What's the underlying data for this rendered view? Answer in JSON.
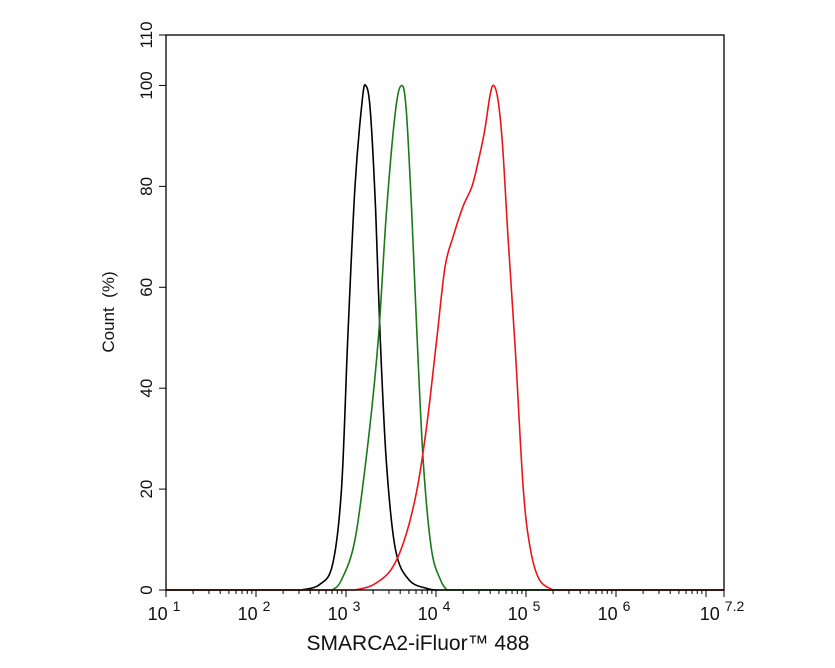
{
  "chart_data": {
    "type": "line",
    "title": "",
    "xlabel": "SMARCA2-iFluor™ 488",
    "ylabel": "Count  (%)",
    "x_scale": "log",
    "xlim": [
      10,
      15848932
    ],
    "ylim": [
      0,
      110
    ],
    "x_ticks": [
      {
        "base": "10",
        "exp": "1",
        "value": 10
      },
      {
        "base": "10",
        "exp": "2",
        "value": 100
      },
      {
        "base": "10",
        "exp": "3",
        "value": 1000
      },
      {
        "base": "10",
        "exp": "4",
        "value": 10000
      },
      {
        "base": "10",
        "exp": "5",
        "value": 100000
      },
      {
        "base": "10",
        "exp": "6",
        "value": 1000000
      },
      {
        "base": "10",
        "exp": "7.2",
        "value": 15848932
      }
    ],
    "y_ticks": [
      0,
      20,
      40,
      60,
      80,
      100,
      110
    ],
    "grid": false,
    "legend": "none",
    "series": [
      {
        "color": "#000000",
        "x": [
          316,
          501,
          708,
          891,
          1047,
          1259,
          1514,
          1660,
          1862,
          2138,
          2399,
          2818,
          3548,
          5012,
          7943,
          10000
        ],
        "y": [
          0,
          1,
          5,
          20,
          50,
          80,
          97,
          100,
          95,
          75,
          50,
          25,
          8,
          2,
          0.3,
          0
        ]
      },
      {
        "color": "#1a7a1a",
        "x": [
          708,
          891,
          1259,
          1778,
          2291,
          2818,
          3548,
          4169,
          4677,
          5370,
          6166,
          7244,
          8913,
          11220,
          13183
        ],
        "y": [
          0,
          2,
          10,
          30,
          50,
          75,
          95,
          100,
          95,
          75,
          50,
          25,
          8,
          2,
          0
        ]
      },
      {
        "color": "#e8161b",
        "x": [
          1259,
          1995,
          3162,
          4467,
          6166,
          7943,
          10233,
          12589,
          15488,
          19953,
          25119,
          29512,
          34674,
          39811,
          43652,
          48978,
          54954,
          63096,
          75858,
          93325,
          112202,
          141254,
          199526
        ],
        "y": [
          0,
          1,
          4,
          10,
          20,
          33,
          50,
          64,
          70,
          76,
          80,
          85,
          91,
          98,
          100,
          97,
          88,
          70,
          48,
          20,
          8,
          2,
          0
        ]
      }
    ]
  }
}
